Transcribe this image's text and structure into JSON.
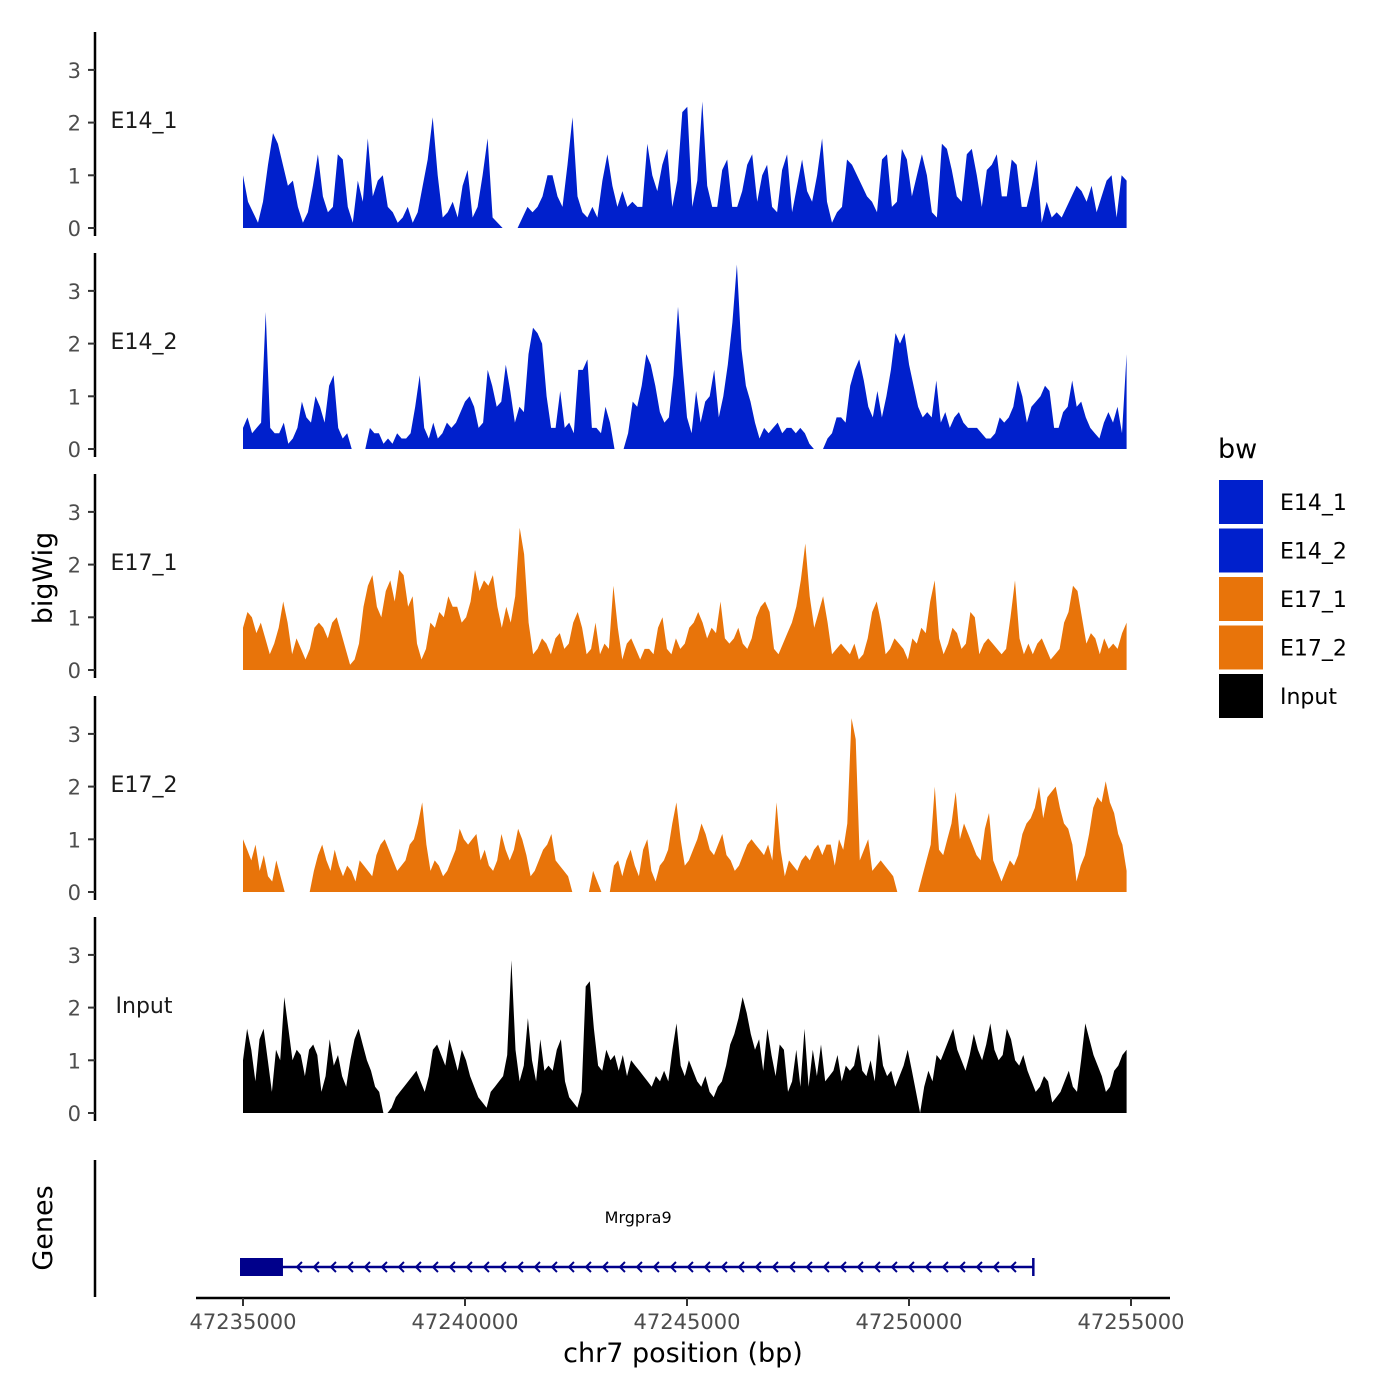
{
  "chart_data": {
    "type": "area",
    "title": "",
    "xlabel": "chr7 position (bp)",
    "ylabel": "bigWig",
    "gene_panel_label": "Genes",
    "chromosome": "chr7",
    "xlim": [
      47234000,
      47256000
    ],
    "x_ticks": [
      47235000,
      47240000,
      47245000,
      47250000,
      47255000
    ],
    "x_tick_labels": [
      "47235000",
      "47240000",
      "47245000",
      "47250000",
      "47255000"
    ],
    "y_ticks": [
      0,
      1,
      2,
      3
    ],
    "y_tick_labels": [
      "0",
      "1",
      "2",
      "3"
    ],
    "ylim": [
      0,
      3.7
    ],
    "legend": {
      "title": "bw",
      "entries": [
        {
          "label": "E14_1",
          "color": "#0020cc"
        },
        {
          "label": "E14_2",
          "color": "#0020cc"
        },
        {
          "label": "E17_1",
          "color": "#e8740a"
        },
        {
          "label": "E17_2",
          "color": "#e8740a"
        },
        {
          "label": "Input",
          "color": "#000000"
        }
      ]
    },
    "series": [
      {
        "name": "E14_1",
        "color": "#0020cc",
        "x_start": 47235000,
        "x_end": 47254900,
        "values": [
          1.0,
          0.5,
          0.3,
          0.1,
          0.5,
          1.2,
          1.8,
          1.6,
          1.2,
          0.8,
          0.9,
          0.4,
          0.1,
          0.3,
          0.8,
          1.4,
          0.6,
          0.3,
          0.4,
          1.4,
          1.3,
          0.4,
          0.1,
          0.9,
          0.5,
          1.7,
          0.6,
          0.9,
          1.0,
          0.4,
          0.3,
          0.1,
          0.2,
          0.4,
          0.1,
          0.3,
          0.8,
          1.3,
          2.1,
          1.0,
          0.2,
          0.3,
          0.5,
          0.2,
          0.8,
          1.1,
          0.2,
          0.4,
          1.0,
          1.7,
          0.2,
          0.1,
          0.0,
          0.0,
          0.0,
          0.0,
          0.2,
          0.4,
          0.3,
          0.4,
          0.6,
          1.0,
          1.0,
          0.6,
          0.4,
          1.2,
          2.1,
          0.6,
          0.3,
          0.2,
          0.4,
          0.2,
          0.9,
          1.4,
          0.8,
          0.4,
          0.7,
          0.4,
          0.5,
          0.4,
          0.4,
          1.6,
          1.0,
          0.7,
          1.2,
          1.5,
          0.4,
          0.9,
          2.2,
          2.3,
          0.4,
          0.9,
          2.4,
          0.8,
          0.4,
          0.4,
          1.1,
          1.3,
          0.4,
          0.4,
          0.7,
          1.2,
          1.4,
          0.5,
          1.0,
          1.2,
          0.4,
          0.3,
          1.1,
          1.4,
          0.3,
          0.8,
          1.3,
          0.7,
          0.5,
          1.0,
          1.7,
          0.5,
          0.1,
          0.3,
          0.4,
          1.3,
          1.2,
          1.0,
          0.8,
          0.6,
          0.5,
          0.3,
          1.3,
          1.4,
          0.4,
          0.5,
          1.5,
          1.3,
          0.6,
          1.0,
          1.4,
          1.0,
          0.3,
          0.2,
          1.6,
          1.5,
          1.1,
          0.6,
          0.5,
          1.4,
          1.5,
          1.0,
          0.4,
          1.1,
          1.2,
          1.4,
          0.6,
          0.6,
          1.3,
          1.2,
          0.4,
          0.4,
          0.8,
          1.3,
          0.1,
          0.5,
          0.2,
          0.3,
          0.2,
          0.4,
          0.6,
          0.8,
          0.7,
          0.5,
          0.8,
          0.3,
          0.6,
          0.9,
          1.0,
          0.2,
          1.0,
          0.9
        ]
      },
      {
        "name": "E14_2",
        "color": "#0020cc",
        "x_start": 47235000,
        "x_end": 47254900,
        "values": [
          0.4,
          0.6,
          0.3,
          0.4,
          0.5,
          2.6,
          0.4,
          0.3,
          0.3,
          0.5,
          0.1,
          0.2,
          0.4,
          0.9,
          0.6,
          0.5,
          1.0,
          0.8,
          0.5,
          1.2,
          1.4,
          0.4,
          0.2,
          0.3,
          0.0,
          0.0,
          0.0,
          0.0,
          0.4,
          0.3,
          0.3,
          0.1,
          0.2,
          0.1,
          0.3,
          0.2,
          0.2,
          0.3,
          0.8,
          1.4,
          0.4,
          0.2,
          0.5,
          0.2,
          0.3,
          0.5,
          0.4,
          0.5,
          0.7,
          0.9,
          1.0,
          0.8,
          0.4,
          0.5,
          1.5,
          1.2,
          0.8,
          0.9,
          1.6,
          1.1,
          0.5,
          0.8,
          0.7,
          1.8,
          2.3,
          2.2,
          2.0,
          1.0,
          0.4,
          0.4,
          1.1,
          0.4,
          0.5,
          0.3,
          1.5,
          1.5,
          1.7,
          0.4,
          0.4,
          0.3,
          0.8,
          0.5,
          0.0,
          0.0,
          0.0,
          0.3,
          0.9,
          0.8,
          1.2,
          1.8,
          1.6,
          1.2,
          0.7,
          0.5,
          0.6,
          1.4,
          2.7,
          1.6,
          0.6,
          0.3,
          1.1,
          0.5,
          0.9,
          1.0,
          1.5,
          0.6,
          1.0,
          1.6,
          2.4,
          3.5,
          1.9,
          1.2,
          0.9,
          0.5,
          0.2,
          0.4,
          0.3,
          0.4,
          0.5,
          0.3,
          0.4,
          0.4,
          0.3,
          0.4,
          0.3,
          0.1,
          0.0,
          0.0,
          0.0,
          0.2,
          0.3,
          0.6,
          0.6,
          0.5,
          1.2,
          1.5,
          1.7,
          1.3,
          0.8,
          0.6,
          1.1,
          0.6,
          1.0,
          1.5,
          2.2,
          2.0,
          2.2,
          1.6,
          1.2,
          0.8,
          0.6,
          0.7,
          0.6,
          1.3,
          0.5,
          0.7,
          0.4,
          0.6,
          0.7,
          0.5,
          0.4,
          0.4,
          0.4,
          0.3,
          0.2,
          0.2,
          0.3,
          0.6,
          0.5,
          0.6,
          0.8,
          1.3,
          1.0,
          0.5,
          0.8,
          0.9,
          1.0,
          1.2,
          1.1,
          0.4,
          0.4,
          0.7,
          0.8,
          1.3,
          0.8,
          0.9,
          0.6,
          0.4,
          0.3,
          0.2,
          0.5,
          0.7,
          0.5,
          0.8,
          0.3,
          1.8
        ]
      },
      {
        "name": "E17_1",
        "color": "#e8740a",
        "x_start": 47235000,
        "x_end": 47254900,
        "values": [
          0.8,
          1.1,
          1.0,
          0.7,
          0.9,
          0.6,
          0.3,
          0.5,
          0.8,
          1.3,
          0.9,
          0.3,
          0.6,
          0.4,
          0.2,
          0.4,
          0.8,
          0.9,
          0.8,
          0.6,
          0.9,
          1.0,
          0.7,
          0.4,
          0.1,
          0.2,
          0.5,
          1.2,
          1.6,
          1.8,
          1.2,
          1.0,
          1.5,
          1.7,
          1.3,
          1.9,
          1.8,
          1.2,
          1.4,
          0.5,
          0.2,
          0.4,
          0.9,
          0.8,
          1.1,
          1.0,
          1.4,
          1.2,
          1.2,
          0.9,
          1.0,
          1.3,
          1.9,
          1.5,
          1.7,
          1.6,
          1.8,
          1.2,
          0.8,
          1.2,
          0.9,
          1.4,
          2.7,
          2.2,
          0.9,
          0.3,
          0.4,
          0.6,
          0.5,
          0.3,
          0.6,
          0.7,
          0.4,
          0.5,
          0.9,
          1.1,
          0.8,
          0.3,
          0.4,
          0.9,
          0.3,
          0.5,
          0.4,
          1.6,
          0.8,
          0.2,
          0.5,
          0.6,
          0.4,
          0.2,
          0.4,
          0.4,
          0.3,
          0.8,
          1.0,
          0.4,
          0.3,
          0.6,
          0.4,
          0.5,
          0.8,
          0.9,
          1.1,
          0.9,
          0.6,
          0.8,
          0.7,
          1.3,
          0.6,
          0.5,
          0.6,
          0.8,
          0.5,
          0.4,
          0.6,
          1.0,
          1.2,
          1.3,
          1.1,
          0.4,
          0.3,
          0.5,
          0.7,
          0.9,
          1.2,
          1.7,
          2.4,
          1.4,
          0.8,
          1.1,
          1.4,
          0.9,
          0.3,
          0.4,
          0.5,
          0.4,
          0.3,
          0.5,
          0.2,
          0.3,
          0.6,
          1.1,
          1.3,
          0.9,
          0.3,
          0.4,
          0.6,
          0.5,
          0.4,
          0.2,
          0.6,
          0.5,
          0.8,
          0.7,
          1.3,
          1.7,
          0.6,
          0.3,
          0.5,
          0.8,
          0.7,
          0.4,
          0.5,
          1.1,
          1.0,
          0.3,
          0.5,
          0.6,
          0.5,
          0.4,
          0.3,
          0.4,
          1.0,
          1.7,
          0.6,
          0.3,
          0.5,
          0.3,
          0.5,
          0.6,
          0.4,
          0.2,
          0.3,
          0.4,
          0.9,
          1.1,
          1.6,
          1.5,
          1.0,
          0.5,
          0.7,
          0.6,
          0.3,
          0.6,
          0.4,
          0.5,
          0.4,
          0.7,
          0.9
        ]
      },
      {
        "name": "E17_2",
        "color": "#e8740a",
        "x_start": 47235000,
        "x_end": 47254900,
        "values": [
          1.0,
          0.8,
          0.6,
          0.9,
          0.4,
          0.7,
          0.3,
          0.2,
          0.6,
          0.3,
          0.0,
          0.0,
          0.0,
          0.0,
          0.0,
          0.0,
          0.0,
          0.4,
          0.7,
          0.9,
          0.6,
          0.4,
          0.8,
          0.5,
          0.3,
          0.5,
          0.4,
          0.2,
          0.6,
          0.5,
          0.4,
          0.3,
          0.7,
          0.9,
          1.0,
          0.8,
          0.6,
          0.4,
          0.5,
          0.6,
          0.9,
          1.0,
          1.3,
          1.7,
          0.9,
          0.4,
          0.6,
          0.5,
          0.3,
          0.4,
          0.6,
          0.8,
          1.2,
          1.0,
          0.9,
          1.0,
          1.1,
          0.6,
          0.8,
          0.5,
          0.4,
          0.6,
          1.1,
          0.8,
          0.6,
          0.8,
          1.2,
          1.0,
          0.7,
          0.3,
          0.4,
          0.6,
          0.8,
          0.9,
          1.1,
          0.6,
          0.5,
          0.4,
          0.3,
          0.0,
          0.0,
          0.0,
          0.0,
          0.0,
          0.4,
          0.2,
          0.0,
          0.0,
          0.0,
          0.5,
          0.6,
          0.3,
          0.6,
          0.8,
          0.5,
          0.3,
          0.8,
          1.0,
          0.4,
          0.2,
          0.5,
          0.6,
          0.8,
          1.3,
          1.7,
          1.0,
          0.5,
          0.6,
          0.8,
          1.0,
          1.3,
          1.1,
          0.8,
          0.7,
          0.9,
          1.1,
          0.7,
          0.6,
          0.4,
          0.5,
          0.7,
          0.9,
          1.0,
          0.9,
          0.8,
          0.7,
          0.9,
          0.6,
          1.7,
          0.8,
          0.3,
          0.6,
          0.5,
          0.4,
          0.6,
          0.7,
          0.6,
          0.8,
          0.9,
          0.7,
          0.9,
          0.9,
          0.5,
          1.0,
          0.8,
          1.3,
          3.3,
          2.9,
          0.6,
          0.8,
          1.0,
          0.4,
          0.5,
          0.6,
          0.5,
          0.4,
          0.3,
          0.0,
          0.0,
          0.0,
          0.0,
          0.0,
          0.0,
          0.3,
          0.6,
          0.9,
          2.0,
          0.8,
          0.7,
          1.0,
          1.3,
          1.9,
          1.0,
          1.3,
          1.1,
          0.9,
          0.7,
          0.6,
          1.2,
          1.5,
          0.6,
          0.4,
          0.2,
          0.4,
          0.6,
          0.5,
          0.7,
          1.1,
          1.3,
          1.4,
          1.6,
          2.0,
          1.4,
          1.8,
          1.9,
          2.0,
          1.6,
          1.3,
          1.2,
          0.9,
          0.2,
          0.5,
          0.7,
          1.1,
          1.6,
          1.8,
          1.7,
          2.1,
          1.7,
          1.5,
          1.1,
          0.9,
          0.4
        ]
      },
      {
        "name": "Input",
        "color": "#000000",
        "x_start": 47235000,
        "x_end": 47254900,
        "values": [
          1.0,
          1.6,
          1.2,
          0.6,
          1.4,
          1.6,
          1.0,
          0.4,
          1.2,
          1.0,
          2.2,
          1.6,
          1.0,
          1.2,
          1.1,
          0.7,
          1.2,
          1.3,
          1.1,
          0.4,
          0.7,
          1.4,
          0.9,
          1.1,
          0.7,
          0.5,
          1.0,
          1.4,
          1.6,
          1.3,
          1.0,
          0.8,
          0.5,
          0.4,
          0.0,
          0.0,
          0.1,
          0.3,
          0.4,
          0.5,
          0.6,
          0.7,
          0.8,
          0.6,
          0.4,
          0.7,
          1.2,
          1.3,
          1.1,
          0.9,
          1.4,
          1.1,
          0.8,
          1.2,
          1.0,
          0.7,
          0.5,
          0.3,
          0.2,
          0.1,
          0.4,
          0.5,
          0.6,
          0.7,
          1.1,
          2.9,
          1.2,
          0.6,
          0.9,
          1.8,
          1.0,
          0.6,
          1.4,
          0.8,
          0.9,
          0.8,
          1.2,
          1.4,
          0.6,
          0.3,
          0.2,
          0.1,
          0.4,
          2.4,
          2.5,
          1.6,
          0.9,
          0.8,
          1.2,
          1.0,
          1.1,
          0.8,
          1.1,
          0.7,
          1.0,
          0.9,
          0.8,
          0.7,
          0.6,
          0.5,
          0.7,
          0.6,
          0.8,
          0.6,
          1.2,
          1.7,
          0.9,
          0.7,
          1.0,
          0.8,
          0.6,
          0.5,
          0.7,
          0.4,
          0.3,
          0.5,
          0.6,
          0.9,
          1.3,
          1.5,
          1.8,
          2.2,
          1.9,
          1.5,
          1.2,
          1.4,
          0.8,
          1.6,
          1.1,
          0.7,
          1.3,
          1.2,
          0.4,
          0.6,
          1.2,
          0.5,
          1.6,
          0.5,
          1.2,
          0.7,
          1.3,
          0.6,
          0.7,
          0.8,
          1.1,
          0.6,
          0.9,
          0.8,
          0.9,
          1.3,
          0.8,
          0.7,
          1.0,
          0.6,
          1.5,
          0.9,
          0.7,
          0.8,
          0.5,
          0.7,
          0.9,
          1.2,
          0.8,
          0.4,
          0.0,
          0.5,
          0.8,
          0.6,
          1.1,
          1.0,
          1.2,
          1.4,
          1.6,
          1.2,
          1.0,
          0.8,
          1.1,
          1.5,
          1.2,
          1.0,
          1.3,
          1.7,
          1.2,
          1.0,
          1.1,
          1.6,
          1.4,
          1.0,
          0.9,
          1.1,
          0.8,
          0.6,
          0.4,
          0.5,
          0.7,
          0.6,
          0.2,
          0.3,
          0.4,
          0.6,
          0.8,
          0.5,
          0.4,
          1.0,
          1.7,
          1.4,
          1.1,
          0.9,
          0.7,
          0.4,
          0.5,
          0.8,
          0.9,
          1.1,
          1.2
        ]
      }
    ],
    "genes": [
      {
        "name": "Mrgpra9",
        "start": 47235000,
        "end": 47252800,
        "strand": "-",
        "cds_start": 47235000,
        "cds_end": 47235900,
        "color": "#00008b"
      }
    ]
  }
}
